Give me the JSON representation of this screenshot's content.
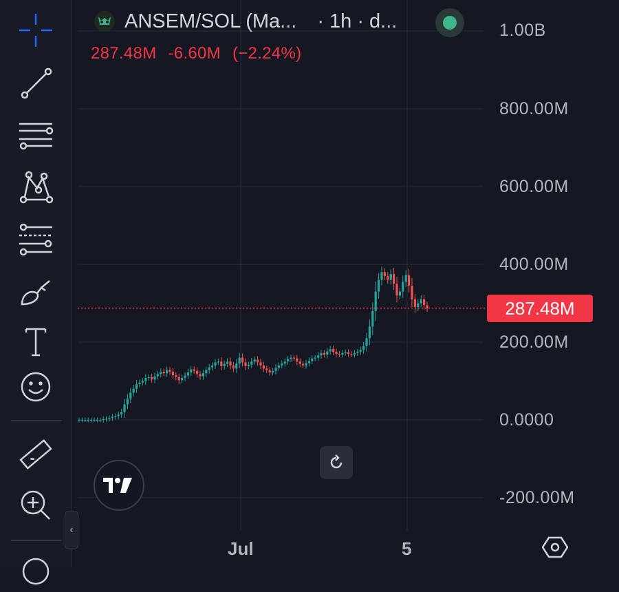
{
  "toolbar": {
    "tools": [
      {
        "name": "crosshair-icon"
      },
      {
        "name": "trend-line-icon"
      },
      {
        "name": "horizontal-lines-icon"
      },
      {
        "name": "pattern-icon"
      },
      {
        "name": "fib-retracement-icon"
      },
      {
        "name": "brush-icon"
      },
      {
        "name": "text-icon"
      },
      {
        "name": "emoji-icon"
      },
      {
        "name": "ruler-icon"
      },
      {
        "name": "zoom-in-icon"
      }
    ],
    "collapse_label": "‹"
  },
  "header": {
    "symbol": "ANSEM/SOL (Ma...",
    "interval": "· 1h · d...",
    "status_color": "#3fb58a"
  },
  "ohlc": {
    "price": "287.48M",
    "change": "-6.60M",
    "change_pct": "(−2.24%)",
    "color": "#f23645"
  },
  "price_axis": {
    "labels": [
      "1.00B",
      "800.00M",
      "600.00M",
      "400.00M",
      "200.00M",
      "0.0000",
      "-200.00M"
    ],
    "last_price_label": "287.48M"
  },
  "time_axis": {
    "labels": [
      "Jul",
      "5"
    ]
  },
  "chart_data": {
    "type": "candlestick",
    "ylim": [
      -200000000,
      1000000000
    ],
    "y_ticks": [
      1000000000,
      800000000,
      600000000,
      400000000,
      200000000,
      0,
      -200000000
    ],
    "last_price": 287480000,
    "up_color": "#26a69a",
    "down_color": "#ef5350",
    "points_per_candle": "close values (M) sampled across the visible range",
    "closes": [
      0,
      0,
      0,
      0,
      0,
      0,
      0,
      0,
      2,
      3,
      5,
      8,
      10,
      14,
      20,
      40,
      55,
      70,
      80,
      92,
      96,
      100,
      108,
      110,
      104,
      112,
      118,
      124,
      120,
      128,
      124,
      115,
      110,
      102,
      108,
      114,
      122,
      130,
      126,
      118,
      112,
      120,
      128,
      135,
      140,
      148,
      150,
      138,
      144,
      150,
      140,
      132,
      145,
      160,
      148,
      138,
      142,
      150,
      155,
      148,
      140,
      132,
      128,
      122,
      126,
      134,
      140,
      145,
      150,
      156,
      160,
      158,
      150,
      144,
      140,
      146,
      152,
      158,
      160,
      166,
      172,
      168,
      176,
      182,
      175,
      170,
      168,
      172,
      174,
      170,
      168,
      172,
      175,
      180,
      190,
      210,
      240,
      280,
      330,
      360,
      380,
      370,
      360,
      375,
      350,
      320,
      330,
      355,
      372,
      345,
      310,
      290,
      300,
      310,
      295,
      287
    ]
  },
  "buttons": {
    "reset_label": "reset-chart"
  }
}
